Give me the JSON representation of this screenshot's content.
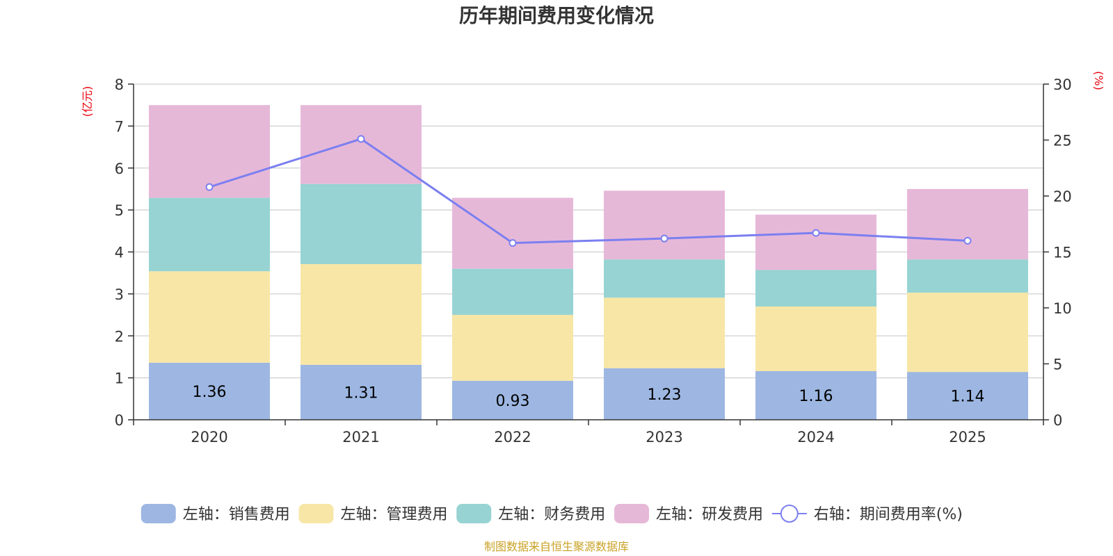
{
  "chart_data": {
    "type": "bar",
    "stacked": true,
    "title": "历年期间费用变化情况",
    "categories": [
      "2020",
      "2021",
      "2022",
      "2023",
      "2024",
      "2025"
    ],
    "series": [
      {
        "name": "左轴：销售费用",
        "axis": "left",
        "type": "bar",
        "color": "#9db7e2",
        "values": [
          1.36,
          1.31,
          0.93,
          1.23,
          1.16,
          1.14
        ],
        "show_labels": true
      },
      {
        "name": "左轴：管理费用",
        "axis": "left",
        "type": "bar",
        "color": "#f7e6a6",
        "values": [
          2.18,
          2.4,
          1.57,
          1.68,
          1.54,
          1.89
        ],
        "show_labels": false
      },
      {
        "name": "左轴：财务费用",
        "axis": "left",
        "type": "bar",
        "color": "#97d3d3",
        "values": [
          1.75,
          1.91,
          1.1,
          0.91,
          0.87,
          0.79
        ],
        "show_labels": false
      },
      {
        "name": "左轴：研发费用",
        "axis": "left",
        "type": "bar",
        "color": "#e6b8d8",
        "values": [
          2.21,
          1.88,
          1.69,
          1.64,
          1.32,
          1.68
        ],
        "show_labels": false
      },
      {
        "name": "右轴：期间费用率(%)",
        "axis": "right",
        "type": "line",
        "color": "#7b7ff0",
        "values": [
          20.8,
          25.1,
          15.8,
          16.2,
          16.7,
          16.0
        ],
        "show_labels": false
      }
    ],
    "left_axis": {
      "label": "(亿元)",
      "ylim": [
        0,
        8
      ],
      "ticks": [
        "0",
        "1",
        "2",
        "3",
        "4",
        "5",
        "6",
        "7",
        "8"
      ]
    },
    "right_axis": {
      "label": "(%)",
      "ylim": [
        0,
        30
      ],
      "ticks": [
        "0",
        "5",
        "10",
        "15",
        "20",
        "25",
        "30"
      ]
    },
    "grid": true,
    "legend_position": "bottom"
  },
  "source_note": "制图数据来自恒生聚源数据库"
}
